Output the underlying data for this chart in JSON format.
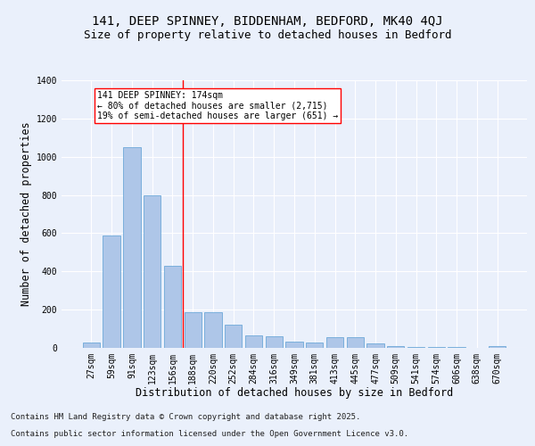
{
  "title_line1": "141, DEEP SPINNEY, BIDDENHAM, BEDFORD, MK40 4QJ",
  "title_line2": "Size of property relative to detached houses in Bedford",
  "xlabel": "Distribution of detached houses by size in Bedford",
  "ylabel": "Number of detached properties",
  "footnote_line1": "Contains HM Land Registry data © Crown copyright and database right 2025.",
  "footnote_line2": "Contains public sector information licensed under the Open Government Licence v3.0.",
  "annotation_line1": "141 DEEP SPINNEY: 174sqm",
  "annotation_line2": "← 80% of detached houses are smaller (2,715)",
  "annotation_line3": "19% of semi-detached houses are larger (651) →",
  "categories": [
    "27sqm",
    "59sqm",
    "91sqm",
    "123sqm",
    "156sqm",
    "188sqm",
    "220sqm",
    "252sqm",
    "284sqm",
    "316sqm",
    "349sqm",
    "381sqm",
    "413sqm",
    "445sqm",
    "477sqm",
    "509sqm",
    "541sqm",
    "574sqm",
    "606sqm",
    "638sqm",
    "670sqm"
  ],
  "values": [
    30,
    590,
    1050,
    800,
    430,
    185,
    185,
    120,
    65,
    60,
    35,
    30,
    55,
    55,
    25,
    10,
    5,
    5,
    3,
    1,
    10
  ],
  "bar_color": "#aec6e8",
  "bar_edge_color": "#5a9fd4",
  "vline_x_index": 4.5,
  "vline_color": "red",
  "ylim": [
    0,
    1400
  ],
  "yticks": [
    0,
    200,
    400,
    600,
    800,
    1000,
    1200,
    1400
  ],
  "bg_color": "#eaf0fb",
  "plot_bg_color": "#eaf0fb",
  "annotation_box_color": "white",
  "annotation_box_edgecolor": "red",
  "title_fontsize": 10,
  "subtitle_fontsize": 9,
  "axis_label_fontsize": 8.5,
  "tick_fontsize": 7,
  "annotation_fontsize": 7,
  "footnote_fontsize": 6.5
}
